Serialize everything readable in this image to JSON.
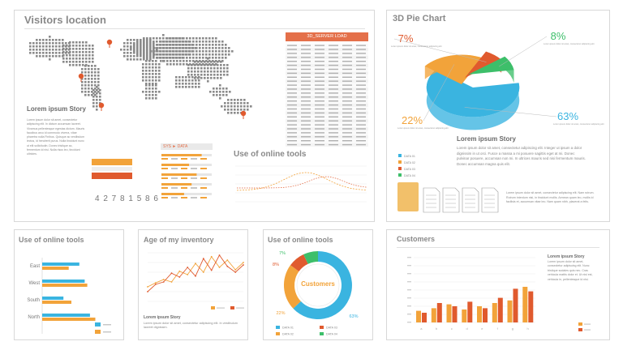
{
  "panels": {
    "visitors": {
      "title": "Visitors location",
      "story_heading": "Lorem ipsum Story",
      "story_text": "Lorem ipsum dolor sit amet, consectetur adipiscing elit. In dictum accumsan laoreet. Vivamus pellentesque egestas dictum. Mauris faucibus arcu id commodo viverra, vitae pharetra nulla Finibus. Quisque ac vestibulum lectus, id hendrerit purus. Nulla tincidunt nunc ut elit sollicitudin. Donec tristique ac, fermentum id nisi. Nulla risus leo, tincidunt ultricies.",
      "counter": "4 2 7 8 1 5 8 6",
      "server_load_title": "3D_SERVER LOAD",
      "sys_data_title": "SYS ► DATA",
      "online_tools_title": "Use of online tools",
      "colors": {
        "orange": "#f2a33a",
        "red": "#e05a2e",
        "blue": "#3ab4e0",
        "green": "#3dbf6a"
      }
    },
    "pie3d": {
      "title": "3D Pie Chart",
      "story_heading": "Lorem ipsum Story",
      "story_text": "Lorem ipsum dolor sit amet, consectetur adipiscing elit. Integer ut ipsum a dolor dignissim in ut orci. Fusce a massa a mi posuere sagittis eget at mi. Donec pulvinar posuere, accumsan non mi. In ultrices mauris sed nisi fermentum mauris. Donec accumsan magna quis elit.",
      "side_text": "Lorem ipsum dolor sit amet, consectetur adipiscing elit. Nam rutrum. Rutrum interdum nisi, in tincidunt mollis. Aenean quam leo, mollis id facilisis et, accumsan vitae leo. Nam quam nibh, placerat a felis.",
      "slice_note": "Lorem ipsum dolor sit amet, consectetur adipiscing elit"
    },
    "tools": {
      "title": "Use of online tools"
    },
    "inventory": {
      "title": "Age of my inventory",
      "story_heading": "Lorem ipsum Story",
      "story_text": "Lorem ipsum dolor sit amet, consectetur adipiscing elit. In vestibulum laoreet dignissim."
    },
    "donut": {
      "title": "Use of online tools",
      "center_label": "Customers"
    },
    "customers": {
      "title": "Customers",
      "story_heading": "Lorem ipsum Story",
      "story_text": "Lorem ipsum dolor sit amet, consectetur adipiscing elit. Nunc tristique sodales quis nec. Cras vehicula mattis dolor et. Ut nisl est, vehicula in, pellentesque id nisi."
    }
  },
  "chart_data": [
    {
      "type": "pie",
      "title": "3D Pie Chart",
      "labels": [
        "DATA 01",
        "DATA 02",
        "DATA 03",
        "DATA 04"
      ],
      "values": [
        63,
        22,
        7,
        8
      ],
      "value_labels": [
        "63%",
        "22%",
        "7%",
        "8%"
      ],
      "colors": [
        "#3ab4e0",
        "#f2a33a",
        "#e05a2e",
        "#3dbf6a"
      ]
    },
    {
      "type": "bar",
      "title": "Use of online tools",
      "orientation": "horizontal",
      "categories": [
        "East",
        "West",
        "South",
        "North"
      ],
      "series": [
        {
          "values": [
            70,
            80,
            40,
            90
          ],
          "color": "#3ab4e0"
        },
        {
          "values": [
            50,
            85,
            55,
            100
          ],
          "color": "#f2a33a"
        }
      ],
      "legend": [
        "",
        ""
      ],
      "xlim": [
        0,
        110
      ]
    },
    {
      "type": "line",
      "title": "Age of my inventory",
      "x": [
        1,
        2,
        3,
        4,
        5,
        6,
        7,
        8,
        9,
        10,
        11,
        12,
        13
      ],
      "series": [
        {
          "values": [
            30,
            38,
            45,
            40,
            62,
            55,
            78,
            60,
            92,
            70,
            85,
            65,
            80
          ],
          "color": "#f2a33a"
        },
        {
          "values": [
            20,
            35,
            40,
            58,
            50,
            70,
            52,
            88,
            64,
            95,
            72,
            60,
            75
          ],
          "color": "#e05a2e"
        }
      ],
      "ylim": [
        0,
        100
      ]
    },
    {
      "type": "pie",
      "title": "Use of online tools",
      "donut": true,
      "labels": [
        "DATA 01",
        "DATA 02",
        "DATA 03",
        "DATA 04"
      ],
      "values": [
        63,
        22,
        8,
        7
      ],
      "value_labels": [
        "63%",
        "22%",
        "8%",
        "7%"
      ],
      "colors": [
        "#3ab4e0",
        "#f2a33a",
        "#e05a2e",
        "#3dbf6a"
      ]
    },
    {
      "type": "bar",
      "title": "Customers",
      "categories": [
        "a",
        "b",
        "c",
        "d",
        "e",
        "f",
        "g",
        "h"
      ],
      "series": [
        {
          "values": [
            18,
            22,
            28,
            20,
            25,
            30,
            34,
            55
          ],
          "color": "#f2a33a"
        },
        {
          "values": [
            15,
            30,
            25,
            32,
            22,
            38,
            52,
            48
          ],
          "color": "#e05a2e"
        }
      ],
      "ylim": [
        0,
        100
      ]
    }
  ]
}
